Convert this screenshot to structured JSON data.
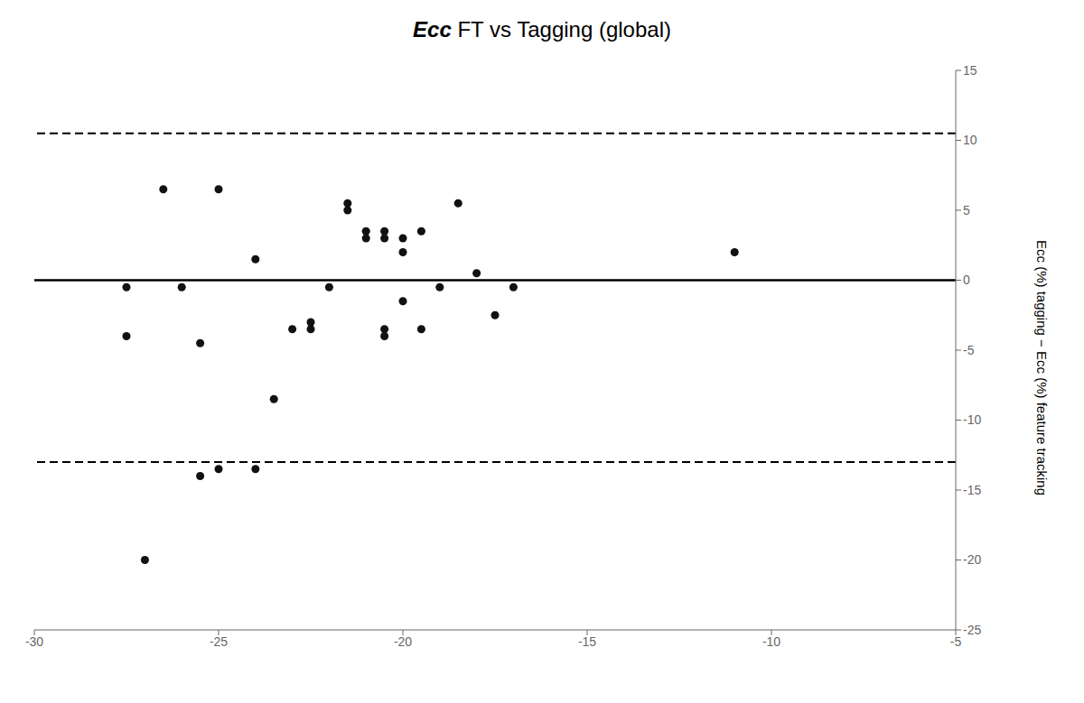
{
  "chart_data": {
    "type": "scatter",
    "title": "Ecc FT vs Tagging (global)",
    "y_label": "Ecc (%) tagging − Ecc (%) feature tracking",
    "x": [
      -27.5,
      -27.5,
      -26.5,
      -26.0,
      -25.5,
      -25.0,
      -25.0,
      -24.0,
      -24.0,
      -23.5,
      -23.0,
      -22.5,
      -22.5,
      -22.0,
      -21.5,
      -21.5,
      -21.0,
      -21.0,
      -20.5,
      -20.5,
      -20.5,
      -20.5,
      -20.0,
      -20.0,
      -20.0,
      -19.5,
      -19.5,
      -19.0,
      -18.5,
      -18.0,
      -17.5,
      -17.0,
      -11.0,
      -27.0,
      -25.5
    ],
    "values": [
      -0.5,
      -4.0,
      6.5,
      -0.5,
      -14.0,
      -13.5,
      6.5,
      1.5,
      -13.5,
      -8.5,
      -3.5,
      -3.0,
      -3.5,
      -0.5,
      5.0,
      5.5,
      3.0,
      3.5,
      3.0,
      3.5,
      -3.5,
      -4.0,
      2.0,
      3.0,
      -1.5,
      3.5,
      -3.5,
      -0.5,
      5.5,
      0.5,
      -2.5,
      -0.5,
      2.0,
      -20.0,
      -4.5
    ],
    "color": "#111111",
    "xlim": [
      -30,
      -5
    ],
    "ylim": [
      -25,
      15
    ],
    "xticks": [
      -30,
      -25,
      -20,
      -15,
      -10,
      -5
    ],
    "yticks": [
      -25,
      -20,
      -15,
      -10,
      -5,
      0,
      5,
      10,
      15
    ],
    "lines": [
      {
        "y": 0.0,
        "line_style": "solid",
        "color": "#000000"
      },
      {
        "y": 10.5,
        "line_style": "dashed",
        "color": "#000000"
      },
      {
        "y": -13.0,
        "line_style": "dashed",
        "color": "#000000"
      }
    ],
    "grid": false,
    "legend": false
  }
}
